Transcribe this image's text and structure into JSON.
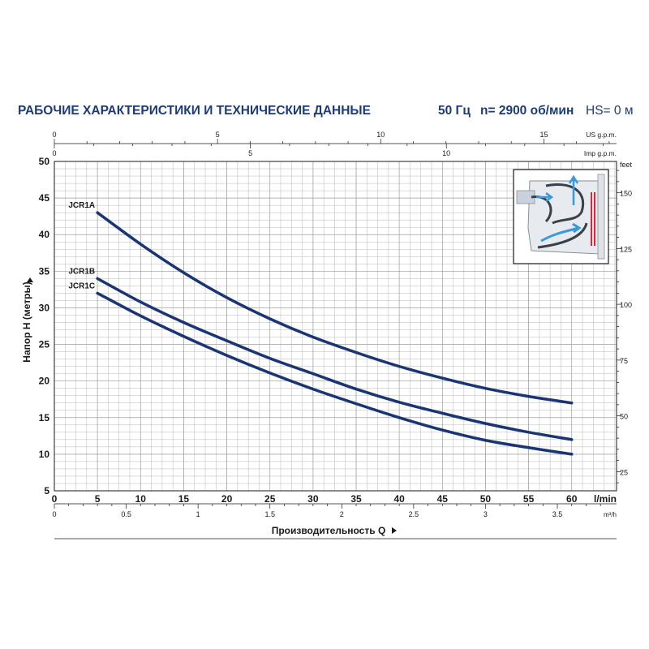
{
  "header": {
    "title": "РАБОЧИЕ ХАРАКТЕРИСТИКИ И ТЕХНИЧЕСКИЕ ДАННЫЕ",
    "frequency": "50 Гц",
    "speed": "n= 2900 об/мин",
    "hs_label": "HS=",
    "hs_value": " 0 м"
  },
  "colors": {
    "curve": "#1a3574",
    "title": "#1d3b77",
    "grid": "#b8b8b8",
    "axis": "#1a1a1a"
  },
  "chart_data": {
    "type": "line",
    "xlabel": "Производительность Q",
    "ylabel": "Напор H (метры)",
    "x_unit": "l/min",
    "y_unit": "",
    "xlim": [
      0,
      60
    ],
    "ylim": [
      5,
      50
    ],
    "x_ticks": [
      5,
      10,
      15,
      20,
      25,
      30,
      35,
      40,
      45,
      50,
      55,
      60
    ],
    "y_ticks": [
      5,
      10,
      15,
      20,
      25,
      30,
      35,
      40,
      45,
      50
    ],
    "x_origin_label": "0",
    "grid": true,
    "series": [
      {
        "name": "JCR1A",
        "x": [
          5,
          10,
          15,
          20,
          25,
          30,
          35,
          40,
          45,
          50,
          55,
          60
        ],
        "y": [
          43,
          38.7,
          34.8,
          31.4,
          28.5,
          26,
          23.9,
          22,
          20.4,
          19,
          17.9,
          17
        ]
      },
      {
        "name": "JCR1B",
        "x": [
          5,
          10,
          15,
          20,
          25,
          30,
          35,
          40,
          45,
          50,
          55,
          60
        ],
        "y": [
          34,
          30.8,
          28,
          25.5,
          23.1,
          21,
          18.9,
          17.1,
          15.6,
          14.2,
          13,
          12
        ]
      },
      {
        "name": "JCR1C",
        "x": [
          5,
          10,
          15,
          20,
          25,
          30,
          35,
          40,
          45,
          50,
          55,
          60
        ],
        "y": [
          32,
          28.9,
          26.1,
          23.5,
          21.1,
          18.9,
          16.9,
          15,
          13.3,
          11.9,
          10.9,
          10
        ]
      }
    ],
    "secondary_axes": {
      "us_gpm": {
        "label": "US g.p.m.",
        "ticks": [
          "0",
          "5",
          "10",
          "15"
        ],
        "values": [
          0,
          5,
          10,
          15
        ]
      },
      "imp_gpm": {
        "label": "Imp g.p.m.",
        "ticks": [
          "0",
          "5",
          "10"
        ],
        "values": [
          0,
          5,
          10
        ]
      },
      "m3h": {
        "label": "m³/h",
        "ticks": [
          "0",
          "0.5",
          "1",
          "1.5",
          "2",
          "2.5",
          "3",
          "3.5"
        ],
        "values": [
          0,
          0.5,
          1,
          1.5,
          2,
          2.5,
          3,
          3.5
        ]
      },
      "feet": {
        "label": "feet",
        "ticks": [
          "25",
          "50",
          "75",
          "100",
          "125",
          "150"
        ],
        "values": [
          25,
          50,
          75,
          100,
          125,
          150
        ]
      }
    }
  }
}
